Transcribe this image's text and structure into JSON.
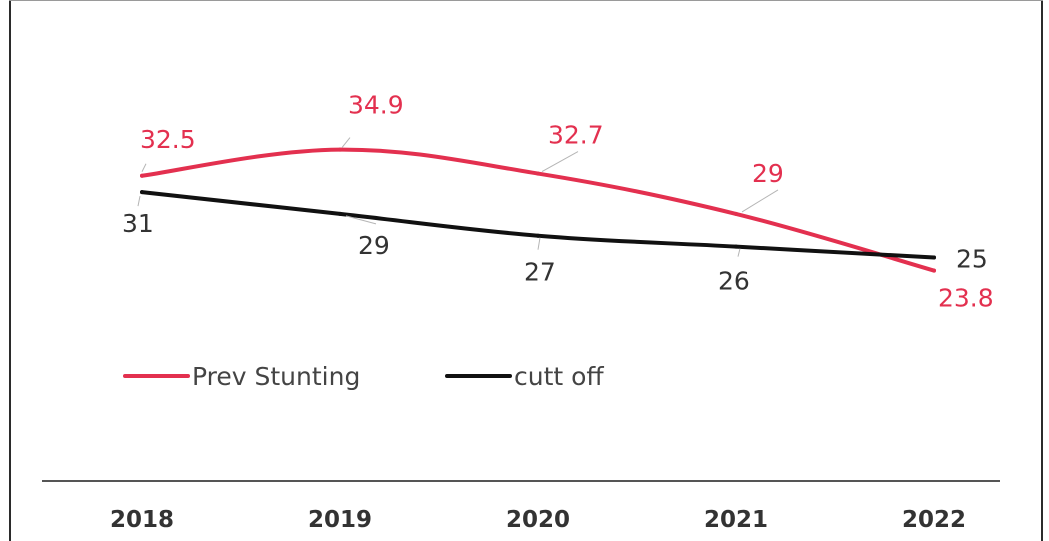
{
  "chart_data": {
    "type": "line",
    "categories": [
      "2018",
      "2019",
      "2020",
      "2021",
      "2022"
    ],
    "series": [
      {
        "name": "Prev Stunting",
        "values": [
          32.5,
          34.9,
          32.7,
          29,
          23.8
        ],
        "labels": [
          "32.5",
          "34.9",
          "32.7",
          "29",
          "23.8"
        ],
        "color": "#e3304f"
      },
      {
        "name": "cutt off",
        "values": [
          31,
          29,
          27,
          26,
          25
        ],
        "labels": [
          "31",
          "29",
          "27",
          "26",
          "25"
        ],
        "color": "#111111"
      }
    ],
    "title": "",
    "xlabel": "",
    "ylabel": "",
    "y_axis_visible": false,
    "grid": false,
    "legend": "middle-left"
  }
}
